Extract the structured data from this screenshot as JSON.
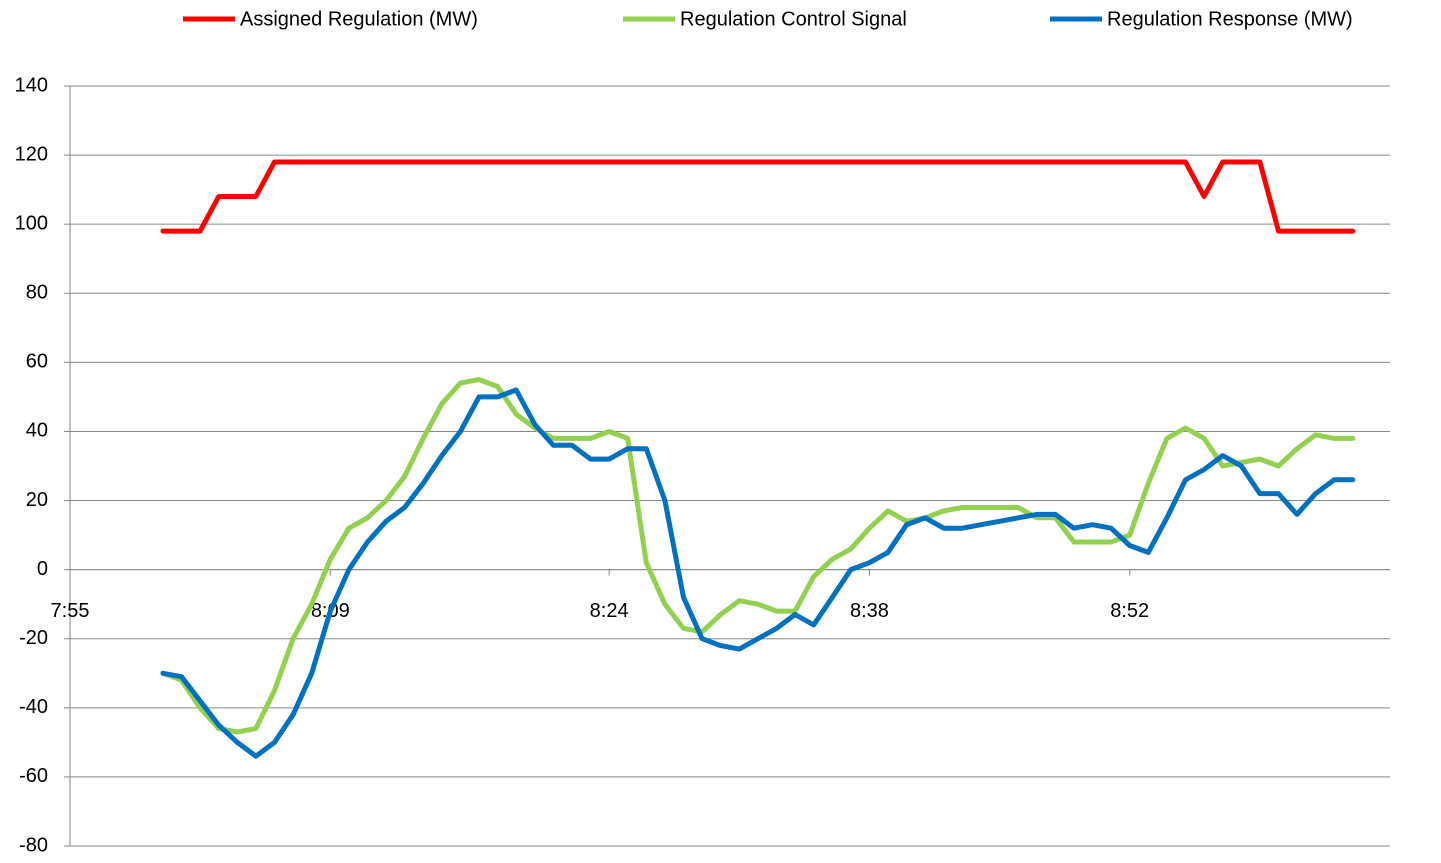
{
  "chart_data": {
    "type": "line",
    "legend": "top",
    "x": [
      480,
      481,
      482,
      483,
      484,
      485,
      486,
      487,
      488,
      489,
      490,
      491,
      492,
      493,
      494,
      495,
      496,
      497,
      498,
      499,
      500,
      501,
      502,
      503,
      504,
      505,
      506,
      507,
      508,
      509,
      510,
      511,
      512,
      513,
      514,
      515,
      516,
      517,
      518,
      519,
      520,
      521,
      522,
      523,
      524,
      525,
      526,
      527,
      528,
      529,
      530,
      531,
      532,
      533,
      534,
      535,
      536,
      537,
      538,
      539,
      540,
      541,
      542,
      543,
      544
    ],
    "xlim": [
      475,
      546
    ],
    "xticks": [
      {
        "value": 475,
        "label": "7:55"
      },
      {
        "value": 489,
        "label": "8:09"
      },
      {
        "value": 504,
        "label": "8:24"
      },
      {
        "value": 518,
        "label": "8:38"
      },
      {
        "value": 532,
        "label": "8:52"
      }
    ],
    "ylim": [
      -80,
      140
    ],
    "yticks": [
      -80,
      -60,
      -40,
      -20,
      0,
      20,
      40,
      60,
      80,
      100,
      120,
      140
    ],
    "grid": true,
    "series": [
      {
        "name": "Assigned Regulation (MW)",
        "color": "#ff0000",
        "values": [
          98,
          98,
          98,
          108,
          108,
          108,
          118,
          118,
          118,
          118,
          118,
          118,
          118,
          118,
          118,
          118,
          118,
          118,
          118,
          118,
          118,
          118,
          118,
          118,
          118,
          118,
          118,
          118,
          118,
          118,
          118,
          118,
          118,
          118,
          118,
          118,
          118,
          118,
          118,
          118,
          118,
          118,
          118,
          118,
          118,
          118,
          118,
          118,
          118,
          118,
          118,
          118,
          118,
          118,
          118,
          118,
          108,
          118,
          118,
          118,
          98,
          98,
          98,
          98,
          98
        ]
      },
      {
        "name": "Regulation Control Signal",
        "color": "#92d050",
        "values": [
          -30,
          -32,
          -40,
          -46,
          -47,
          -46,
          -35,
          -20,
          -10,
          3,
          12,
          15,
          20,
          27,
          38,
          48,
          54,
          55,
          53,
          45,
          41,
          38,
          38,
          38,
          40,
          38,
          2,
          -10,
          -17,
          -18,
          -13,
          -9,
          -10,
          -12,
          -12,
          -2,
          3,
          6,
          12,
          17,
          14,
          15,
          17,
          18,
          18,
          18,
          18,
          15,
          15,
          8,
          8,
          8,
          10,
          25,
          38,
          41,
          38,
          30,
          31,
          32,
          30,
          35,
          39,
          38,
          38
        ]
      },
      {
        "name": "Regulation Response (MW)",
        "color": "#0070c0",
        "values": [
          -30,
          -31,
          -38,
          -45,
          -50,
          -54,
          -50,
          -42,
          -30,
          -12,
          0,
          8,
          14,
          18,
          25,
          33,
          40,
          50,
          50,
          52,
          42,
          36,
          36,
          32,
          32,
          35,
          35,
          20,
          -8,
          -20,
          -22,
          -23,
          -20,
          -17,
          -13,
          -16,
          -8,
          0,
          2,
          5,
          13,
          15,
          12,
          12,
          13,
          14,
          15,
          16,
          16,
          12,
          13,
          12,
          7,
          5,
          15,
          26,
          29,
          33,
          30,
          22,
          22,
          16,
          22,
          26,
          26
        ]
      }
    ]
  }
}
